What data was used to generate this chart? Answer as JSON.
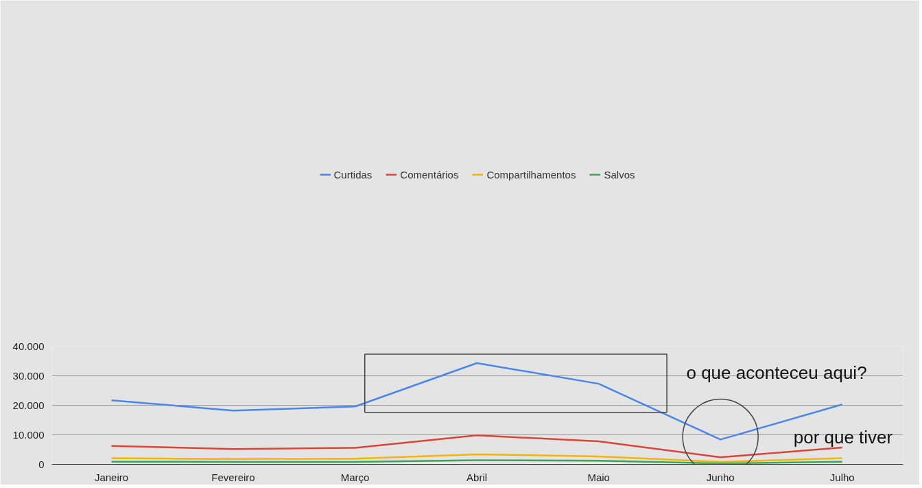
{
  "chart_data": {
    "type": "line",
    "categories": [
      "Janeiro",
      "Fevereiro",
      "Março",
      "Abril",
      "Maio",
      "Junho",
      "Julho"
    ],
    "series": [
      {
        "name": "Curtidas",
        "color": "#4a86e8",
        "values": [
          21700,
          18200,
          19600,
          34300,
          27300,
          8400,
          20300
        ]
      },
      {
        "name": "Comentários",
        "color": "#db4437",
        "values": [
          6200,
          5200,
          5600,
          9800,
          7800,
          2400,
          5700
        ]
      },
      {
        "name": "Compartilhamentos",
        "color": "#f4b400",
        "values": [
          2100,
          1800,
          1900,
          3400,
          2700,
          800,
          2100
        ]
      },
      {
        "name": "Salvos",
        "color": "#3aa757",
        "values": [
          900,
          800,
          800,
          1400,
          1200,
          300,
          900
        ]
      }
    ],
    "ylim": [
      0,
      40000
    ],
    "yticks": [
      {
        "value": 0,
        "label": "0"
      },
      {
        "value": 10000,
        "label": "10.000"
      },
      {
        "value": 20000,
        "label": "20.000"
      },
      {
        "value": 30000,
        "label": "30.000"
      },
      {
        "value": 40000,
        "label": "40.000"
      }
    ],
    "grid": "y",
    "legend": "top",
    "marker": "none",
    "line_style": "solid",
    "annotations": [
      "o que aconteceu aqui?",
      "por que tiver"
    ]
  }
}
